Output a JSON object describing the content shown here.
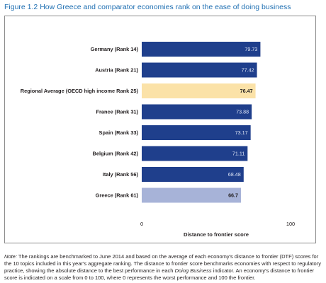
{
  "figure_title": "Figure 1.2 How Greece and comparator economies rank on the ease of doing business",
  "note": {
    "label": "Note:",
    "text_part1": " The rankings are benchmarked to June 2014 and based on the average of each economy's distance to frontier (DTF) scores for the 10 topics included in this year's aggregate ranking.  The distance to frontier score benchmarks economies with respect to regulatory practice, showing the absolute distance to the best performance in each ",
    "emphasis": "Doing Business",
    "text_part2": " indicator.  An economy's distance to frontier score is indicated on a scale from 0 to 100, where 0 represents the worst performance and 100 the frontier."
  },
  "chart_data": {
    "type": "bar",
    "orientation": "horizontal",
    "categories": [
      "Germany (Rank  14)",
      "Austria (Rank  21)",
      "Regional Average (OECD high income Rank 25)",
      "France (Rank  31)",
      "Spain (Rank  33)",
      "Belgium (Rank  42)",
      "Italy (Rank  56)",
      "Greece (Rank 61)"
    ],
    "values": [
      79.73,
      77.42,
      76.47,
      73.88,
      73.17,
      71.11,
      68.48,
      66.7
    ],
    "value_labels": [
      "79.73",
      "77.42",
      "76.47",
      "73.88",
      "73.17",
      "71.11",
      "68.48",
      "66.7"
    ],
    "bar_colors": [
      "#1f3f8c",
      "#1f3f8c",
      "#fbe2a8",
      "#1f3f8c",
      "#1f3f8c",
      "#1f3f8c",
      "#1f3f8c",
      "#a7b3d8"
    ],
    "value_label_colors": [
      "#dce4f5",
      "#dce4f5",
      "#231f20",
      "#dce4f5",
      "#dce4f5",
      "#dce4f5",
      "#dce4f5",
      "#231f20"
    ],
    "xlim": [
      0,
      100
    ],
    "x_tick_labels": [
      "0",
      "100"
    ],
    "xlabel": "Distance to frontier score",
    "ylabel": "",
    "grid": false,
    "legend": "none"
  }
}
